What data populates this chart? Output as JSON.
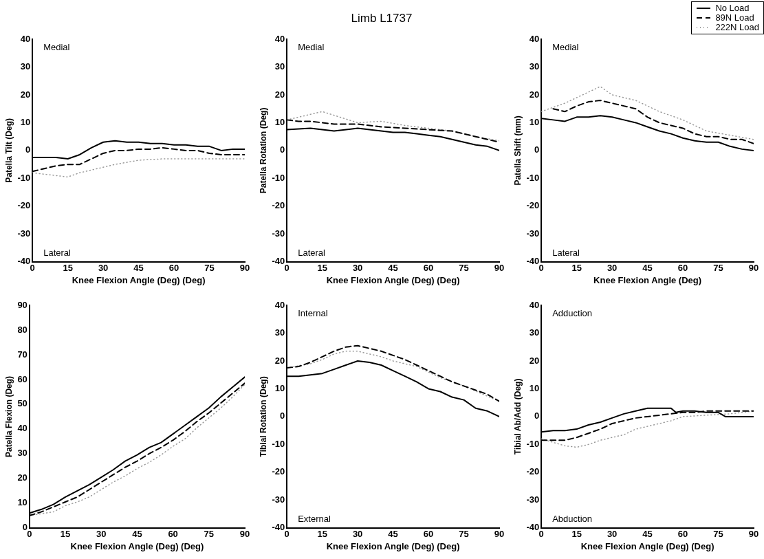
{
  "chart_data": [
    {
      "type": "line",
      "xlabel": "Knee Flexion Angle (Deg) (Deg)",
      "ylabel": "Patella Tilt (Deg)",
      "annotations": [
        "Medial",
        "Lateral"
      ],
      "xlim": [
        0,
        90
      ],
      "xticks": [
        0,
        15,
        30,
        45,
        60,
        75,
        90
      ],
      "ylim": [
        -40,
        40
      ],
      "yticks": [
        -40,
        -30,
        -20,
        -10,
        0,
        10,
        20,
        30,
        40
      ],
      "grid": false,
      "legend": false,
      "marker": "none",
      "x": [
        0,
        5,
        10,
        15,
        20,
        25,
        30,
        35,
        40,
        45,
        50,
        55,
        60,
        65,
        70,
        75,
        80,
        85,
        90
      ],
      "series": [
        {
          "color": "#000000",
          "line_style": "solid",
          "values": [
            -2.5,
            -2.5,
            -2.5,
            -3,
            -1.5,
            1,
            3,
            3.5,
            3,
            3,
            2.5,
            2.5,
            2,
            2,
            1.5,
            1.5,
            0,
            0.5,
            0.5
          ]
        },
        {
          "color": "#000000",
          "line_style": "dashed",
          "values": [
            -7.5,
            -6.5,
            -5.5,
            -5,
            -5,
            -3,
            -1,
            0,
            0,
            0.5,
            0.5,
            1,
            0.5,
            0,
            0,
            -1,
            -1.5,
            -1.5,
            -1.5
          ]
        },
        {
          "color": "#999999",
          "line_style": "dotted",
          "x": [
            0,
            10,
            15,
            20,
            30,
            35,
            45,
            55,
            65,
            75,
            90
          ],
          "values": [
            -8,
            -9,
            -9.5,
            -8,
            -6,
            -5,
            -3.5,
            -3,
            -3,
            -3,
            -3
          ]
        }
      ]
    },
    {
      "type": "line",
      "title": "Limb L1737",
      "xlabel": "Knee Flexion Angle (Deg) (Deg)",
      "ylabel": "Patella Rotation (Deg)",
      "annotations": [
        "Medial",
        "Lateral"
      ],
      "xlim": [
        0,
        90
      ],
      "xticks": [
        0,
        15,
        30,
        45,
        60,
        75,
        90
      ],
      "ylim": [
        -40,
        40
      ],
      "yticks": [
        -40,
        -30,
        -20,
        -10,
        0,
        10,
        20,
        30,
        40
      ],
      "grid": false,
      "legend": false,
      "marker": "none",
      "series": [
        {
          "color": "#000000",
          "line_style": "solid",
          "x": [
            0,
            10,
            15,
            20,
            30,
            40,
            45,
            50,
            55,
            60,
            65,
            70,
            75,
            80,
            85,
            90
          ],
          "values": [
            7.5,
            8,
            7.5,
            7,
            8,
            7,
            6.5,
            6.5,
            6,
            5.5,
            5,
            4,
            3,
            2,
            1.5,
            0
          ]
        },
        {
          "color": "#000000",
          "line_style": "dashed",
          "x": [
            0,
            5,
            10,
            15,
            20,
            30,
            40,
            50,
            60,
            70,
            75,
            80,
            85,
            90
          ],
          "values": [
            11,
            10.5,
            10.5,
            10,
            9.5,
            9.5,
            8.5,
            8,
            7.5,
            7,
            6,
            5,
            4,
            3
          ]
        },
        {
          "color": "#999999",
          "line_style": "dotted",
          "x": [
            0,
            15,
            30,
            40,
            50,
            60,
            70,
            80,
            90
          ],
          "values": [
            11,
            14,
            10,
            10.5,
            9,
            8,
            7,
            5,
            3.5
          ]
        }
      ]
    },
    {
      "type": "line",
      "xlabel": "Knee Flexion Angle (Deg)",
      "ylabel": "Patella Shift (mm)",
      "annotations": [
        "Medial",
        "Lateral"
      ],
      "xlim": [
        0,
        90
      ],
      "xticks": [
        0,
        15,
        30,
        45,
        60,
        75,
        90
      ],
      "ylim": [
        -40,
        40
      ],
      "yticks": [
        -40,
        -30,
        -20,
        -10,
        0,
        10,
        20,
        30,
        40
      ],
      "grid": false,
      "legend": "top right",
      "marker": "none",
      "series": [
        {
          "name": "No Load",
          "color": "#000000",
          "line_style": "solid",
          "x": [
            0,
            5,
            10,
            15,
            20,
            25,
            30,
            35,
            40,
            45,
            50,
            55,
            60,
            65,
            70,
            75,
            80,
            85,
            90
          ],
          "values": [
            11.5,
            11,
            10.5,
            12,
            12,
            12.5,
            12,
            11,
            10,
            8.5,
            7,
            6,
            4.5,
            3.5,
            3,
            3,
            1.5,
            0.5,
            0
          ]
        },
        {
          "name": "89N Load",
          "color": "#000000",
          "line_style": "dashed",
          "x": [
            5,
            10,
            15,
            20,
            25,
            30,
            35,
            40,
            45,
            50,
            55,
            60,
            65,
            70,
            75,
            80,
            85,
            90
          ],
          "values": [
            15,
            14,
            16,
            17.5,
            18,
            17,
            16,
            15,
            12,
            10,
            9,
            8,
            6,
            5,
            5,
            4,
            4,
            2.5
          ]
        },
        {
          "name": "222N Load",
          "color": "#999999",
          "line_style": "dotted",
          "x": [
            0,
            10,
            15,
            20,
            25,
            30,
            40,
            50,
            60,
            70,
            80,
            90
          ],
          "values": [
            14,
            17,
            19,
            21,
            23,
            20,
            18,
            14,
            11,
            7,
            5.5,
            4
          ]
        }
      ]
    },
    {
      "type": "line",
      "xlabel": "Knee Flexion Angle (Deg) (Deg)",
      "ylabel": "Patella Flexion (Deg)",
      "xlim": [
        0,
        90
      ],
      "xticks": [
        0,
        15,
        30,
        45,
        60,
        75,
        90
      ],
      "ylim": [
        0,
        90
      ],
      "yticks": [
        0,
        10,
        20,
        30,
        40,
        50,
        60,
        70,
        80,
        90
      ],
      "grid": false,
      "legend": false,
      "marker": "none",
      "x": [
        0,
        5,
        10,
        15,
        20,
        25,
        30,
        35,
        40,
        45,
        50,
        55,
        60,
        65,
        70,
        75,
        80,
        85,
        90
      ],
      "series": [
        {
          "color": "#000000",
          "line_style": "solid",
          "values": [
            6,
            7.5,
            9.5,
            12.5,
            15,
            17.5,
            20.5,
            23.5,
            27,
            29.5,
            32.5,
            34.5,
            38,
            41.5,
            45,
            48.5,
            53,
            57,
            61
          ]
        },
        {
          "color": "#000000",
          "line_style": "dashed",
          "values": [
            5,
            6.5,
            8.5,
            10.5,
            12.5,
            15.5,
            18.5,
            21.5,
            24.5,
            27,
            30,
            32.5,
            35.5,
            39,
            43,
            46.5,
            50.5,
            54.5,
            58.5
          ]
        },
        {
          "color": "#999999",
          "line_style": "dotted",
          "x": [
            0,
            10,
            15,
            20,
            25,
            30,
            35,
            40,
            45,
            50,
            55,
            60,
            65,
            70,
            75,
            80,
            85,
            90
          ],
          "values": [
            5,
            6.5,
            9,
            10.5,
            12.5,
            15.5,
            18.5,
            21,
            24,
            26.5,
            29.5,
            33,
            36,
            40.5,
            44.5,
            48.5,
            53,
            58
          ]
        }
      ]
    },
    {
      "type": "line",
      "xlabel": "Knee Flexion Angle (Deg) (Deg)",
      "ylabel": "Tibial Rotation (Deg)",
      "annotations": [
        "Internal",
        "External"
      ],
      "xlim": [
        0,
        90
      ],
      "xticks": [
        0,
        15,
        30,
        45,
        60,
        75,
        90
      ],
      "ylim": [
        -40,
        40
      ],
      "yticks": [
        -40,
        -30,
        -20,
        -10,
        0,
        10,
        20,
        30,
        40
      ],
      "grid": false,
      "legend": false,
      "marker": "none",
      "x": [
        0,
        5,
        10,
        15,
        20,
        25,
        30,
        35,
        40,
        45,
        50,
        55,
        60,
        65,
        70,
        75,
        80,
        85,
        90
      ],
      "series": [
        {
          "color": "#000000",
          "line_style": "solid",
          "values": [
            14.5,
            14.5,
            15,
            15.5,
            17,
            18.5,
            20,
            19.5,
            18.5,
            16.5,
            14.5,
            12.5,
            10,
            9,
            7,
            6,
            3,
            2,
            0
          ]
        },
        {
          "color": "#000000",
          "line_style": "dashed",
          "values": [
            17.5,
            18,
            19.5,
            21.5,
            23.5,
            25,
            25.5,
            24.5,
            23.5,
            22,
            20.5,
            18.5,
            16.5,
            14.5,
            12.5,
            11,
            9.5,
            8,
            5.5
          ]
        },
        {
          "color": "#999999",
          "line_style": "dotted",
          "x": [
            0,
            10,
            15,
            20,
            25,
            30,
            35,
            40,
            45,
            55,
            65,
            75,
            90
          ],
          "values": [
            17.5,
            19,
            20.5,
            22.5,
            23.5,
            23.5,
            22.5,
            21.5,
            20,
            18,
            14,
            11,
            5.5
          ]
        }
      ]
    },
    {
      "type": "line",
      "xlabel": "Knee Flexion Angle (Deg) (Deg)",
      "ylabel": "Tibial Ab/Add (Deg)",
      "annotations": [
        "Adduction",
        "Abduction"
      ],
      "xlim": [
        0,
        90
      ],
      "xticks": [
        0,
        15,
        30,
        45,
        60,
        75,
        90
      ],
      "ylim": [
        -40,
        40
      ],
      "yticks": [
        -40,
        -30,
        -20,
        -10,
        0,
        10,
        20,
        30,
        40
      ],
      "grid": false,
      "legend": false,
      "marker": "none",
      "series": [
        {
          "color": "#000000",
          "line_style": "solid",
          "x": [
            0,
            5,
            10,
            15,
            20,
            25,
            30,
            35,
            40,
            45,
            50,
            55,
            57,
            60,
            65,
            70,
            75,
            78,
            85,
            90
          ],
          "values": [
            -5.5,
            -5,
            -5,
            -4.5,
            -3,
            -2,
            -0.5,
            1,
            2,
            3,
            3,
            3,
            1.5,
            2,
            2,
            1.5,
            1.5,
            0,
            0,
            0
          ]
        },
        {
          "color": "#000000",
          "line_style": "dashed",
          "x": [
            0,
            5,
            10,
            15,
            20,
            25,
            30,
            35,
            40,
            45,
            50,
            55,
            60,
            65,
            70,
            75,
            80,
            85,
            90
          ],
          "values": [
            -8.5,
            -8.5,
            -8.5,
            -7.5,
            -6,
            -4.5,
            -2.5,
            -1.5,
            -0.5,
            0,
            0.5,
            1,
            1.5,
            1.5,
            2,
            2,
            2,
            2,
            2
          ]
        },
        {
          "color": "#999999",
          "line_style": "dotted",
          "x": [
            0,
            10,
            15,
            20,
            25,
            30,
            35,
            40,
            45,
            50,
            55,
            60,
            70,
            80,
            90
          ],
          "values": [
            -8,
            -10.5,
            -11,
            -10,
            -8.5,
            -7.5,
            -6.5,
            -4.5,
            -3.5,
            -2.5,
            -1.5,
            0,
            0.5,
            1,
            2
          ]
        }
      ]
    }
  ]
}
